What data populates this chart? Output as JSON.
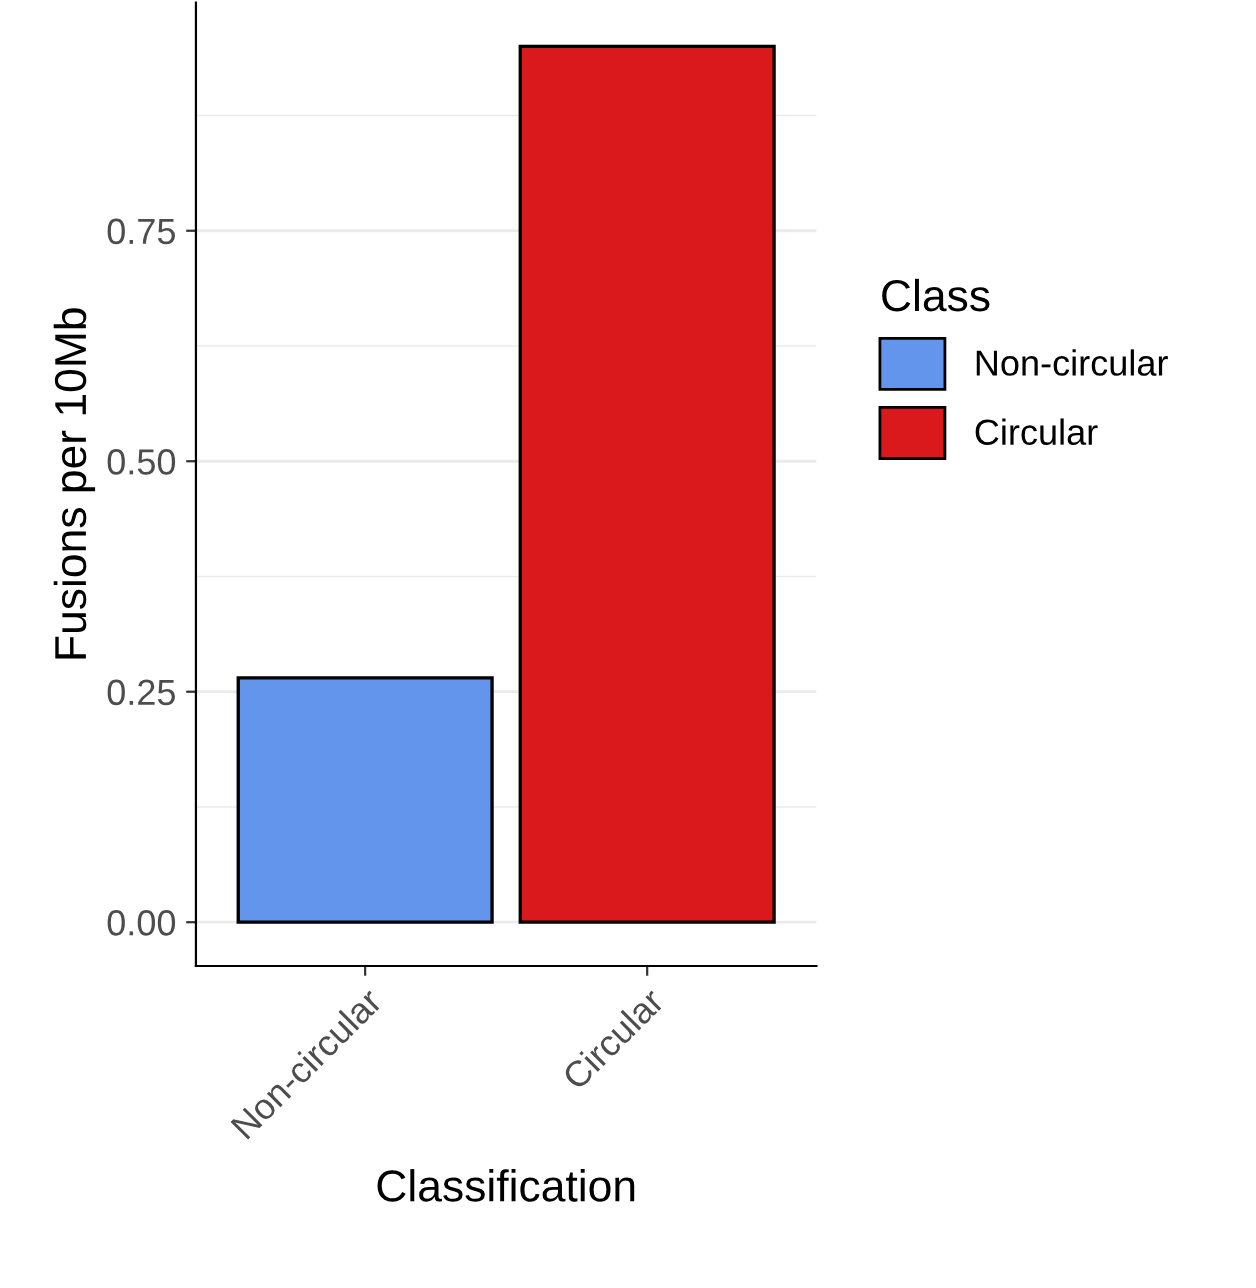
{
  "chart_data": {
    "type": "bar",
    "xlabel": "Classification",
    "ylabel": "Fusions per 10Mb",
    "legend_title": "Class",
    "categories": [
      "Non-circular",
      "Circular"
    ],
    "series": [
      {
        "name": "Non-circular",
        "color": "#6495ed",
        "values": [
          0.265,
          null
        ]
      },
      {
        "name": "Circular",
        "color": "#d9191c",
        "values": [
          null,
          0.95
        ]
      }
    ],
    "ylim": [
      -0.0475,
      0.9975
    ],
    "yticks": [
      {
        "value": 0,
        "label": "0.00"
      },
      {
        "value": 0.25,
        "label": "0.25"
      },
      {
        "value": 0.5,
        "label": "0.50"
      },
      {
        "value": 0.75,
        "label": "0.75"
      }
    ],
    "grid": "y",
    "legend": "right"
  }
}
